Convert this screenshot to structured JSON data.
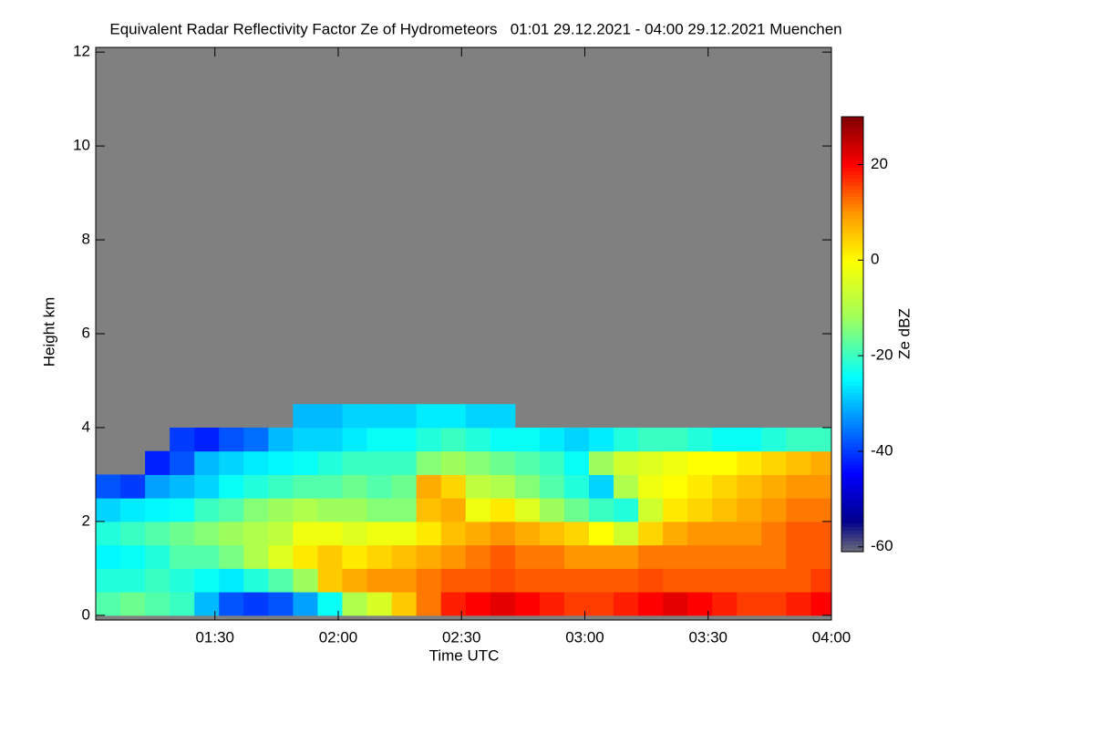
{
  "chart_data": {
    "type": "heatmap",
    "title": "Equivalent Radar Reflectivity Factor Ze of Hydrometeors   01:01 29.12.2021 - 04:00 29.12.2021 Muenchen",
    "x_label": "Time UTC",
    "y_label": "Height km",
    "colorbar_label": "Ze dBZ",
    "xlim": [
      61,
      240
    ],
    "xticks": [
      {
        "value": 90,
        "label": "01:30"
      },
      {
        "value": 120,
        "label": "02:00"
      },
      {
        "value": 150,
        "label": "02:30"
      },
      {
        "value": 180,
        "label": "03:00"
      },
      {
        "value": 210,
        "label": "03:30"
      },
      {
        "value": 240,
        "label": "04:00"
      }
    ],
    "ylim": [
      -0.1,
      12.1
    ],
    "yticks": [
      0,
      2,
      4,
      6,
      8,
      10,
      12
    ],
    "zlim": [
      -61,
      30
    ],
    "zticks": [
      -60,
      -40,
      -20,
      0,
      20
    ],
    "xbins": [
      61,
      67,
      73,
      79,
      85,
      91,
      97,
      103,
      109,
      115,
      121,
      127,
      133,
      139,
      145,
      151,
      157,
      163,
      169,
      175,
      181,
      187,
      193,
      199,
      205,
      211,
      217,
      223,
      229,
      235,
      240
    ],
    "ybins": [
      0,
      0.5,
      1,
      1.5,
      2,
      2.5,
      3,
      3.5,
      4,
      4.5
    ],
    "z": [
      [
        -18,
        -22,
        -25,
        -22,
        -28,
        -38,
        null,
        null,
        null
      ],
      [
        -16,
        -22,
        -24,
        -20,
        -26,
        -40,
        null,
        null,
        null
      ],
      [
        -18,
        -20,
        -22,
        -18,
        -25,
        -32,
        -42,
        null,
        null
      ],
      [
        -20,
        -22,
        -18,
        -16,
        -24,
        -30,
        -38,
        -40,
        null
      ],
      [
        -30,
        -24,
        -18,
        -14,
        -20,
        -28,
        -30,
        -42,
        null
      ],
      [
        -38,
        -26,
        -15,
        -12,
        -18,
        -24,
        -28,
        -38,
        null
      ],
      [
        -40,
        -22,
        -10,
        -10,
        -14,
        -22,
        -26,
        -36,
        null
      ],
      [
        -38,
        -18,
        -4,
        -8,
        -12,
        -20,
        -25,
        -30,
        null
      ],
      [
        -32,
        -12,
        2,
        -2,
        -10,
        -18,
        -24,
        -28,
        -30
      ],
      [
        -24,
        5,
        5,
        -2,
        -12,
        -18,
        -22,
        -28,
        -30
      ],
      [
        -10,
        8,
        2,
        -4,
        -12,
        -16,
        -20,
        -26,
        -28
      ],
      [
        -5,
        10,
        4,
        -2,
        -14,
        -18,
        -20,
        -24,
        -28
      ],
      [
        5,
        10,
        6,
        -2,
        -14,
        -16,
        -20,
        -24,
        -28
      ],
      [
        12,
        12,
        8,
        2,
        6,
        8,
        -14,
        -22,
        -26
      ],
      [
        18,
        14,
        10,
        6,
        8,
        4,
        -12,
        -20,
        -26
      ],
      [
        20,
        14,
        12,
        8,
        -2,
        -8,
        -14,
        -22,
        -28
      ],
      [
        22,
        15,
        14,
        10,
        2,
        -10,
        -16,
        -24,
        -28
      ],
      [
        20,
        14,
        12,
        8,
        -4,
        -14,
        -18,
        -24,
        null
      ],
      [
        18,
        14,
        12,
        6,
        -12,
        -18,
        -20,
        -26,
        null
      ],
      [
        16,
        14,
        10,
        4,
        -16,
        -22,
        -24,
        -28,
        null
      ],
      [
        16,
        14,
        10,
        0,
        -20,
        -28,
        -12,
        -26,
        null
      ],
      [
        18,
        14,
        10,
        -6,
        -22,
        -10,
        -6,
        -22,
        null
      ],
      [
        20,
        15,
        12,
        4,
        -6,
        -2,
        -4,
        -20,
        null
      ],
      [
        22,
        14,
        12,
        8,
        2,
        0,
        -2,
        -20,
        null
      ],
      [
        20,
        14,
        12,
        10,
        4,
        2,
        0,
        -22,
        null
      ],
      [
        18,
        14,
        12,
        10,
        6,
        4,
        0,
        -24,
        null
      ],
      [
        16,
        14,
        12,
        10,
        8,
        6,
        2,
        -24,
        null
      ],
      [
        16,
        14,
        12,
        12,
        10,
        8,
        4,
        -22,
        null
      ],
      [
        18,
        14,
        14,
        14,
        12,
        10,
        6,
        -20,
        null
      ],
      [
        20,
        16,
        14,
        14,
        12,
        10,
        8,
        -20,
        null
      ]
    ],
    "missing_color": "#808080"
  }
}
